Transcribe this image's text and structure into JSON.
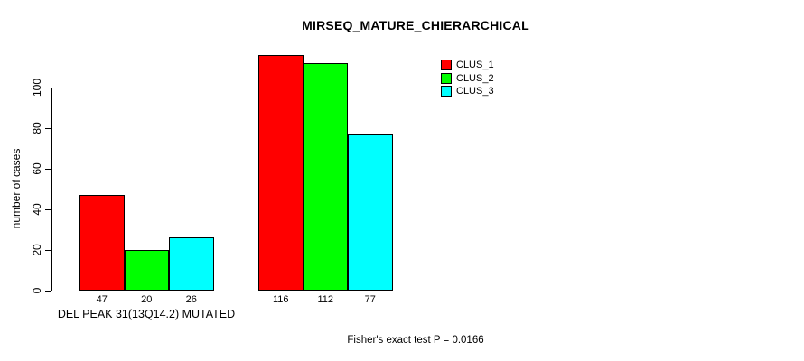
{
  "chart_data": {
    "type": "bar",
    "title": "MIRSEQ_MATURE_CHIERARCHICAL",
    "xlabel": "DEL PEAK 31(13Q14.2) MUTATED",
    "ylabel": "number of cases",
    "categories": [
      "DEL PEAK 31(13Q14.2) MUTATED",
      ""
    ],
    "series": [
      {
        "name": "CLUS_1",
        "color": "#FF0000",
        "values": [
          47,
          116
        ]
      },
      {
        "name": "CLUS_2",
        "color": "#00FF00",
        "values": [
          20,
          112
        ]
      },
      {
        "name": "CLUS_3",
        "color": "#00FFFF",
        "values": [
          26,
          77
        ]
      }
    ],
    "bar_value_labels": [
      [
        "47",
        "20",
        "26"
      ],
      [
        "116",
        "112",
        "77"
      ]
    ],
    "yticks": [
      0,
      20,
      40,
      60,
      80,
      100
    ],
    "ylim": [
      0,
      118
    ],
    "grid": false,
    "legend_position": "upper-right-of-plot",
    "legend": [
      "CLUS_1",
      "CLUS_2",
      "CLUS_3"
    ],
    "annotation": "Fisher's exact test P = 0.0166",
    "colors": {
      "bar_border": "#000000",
      "background": "#FFFFFF"
    }
  }
}
